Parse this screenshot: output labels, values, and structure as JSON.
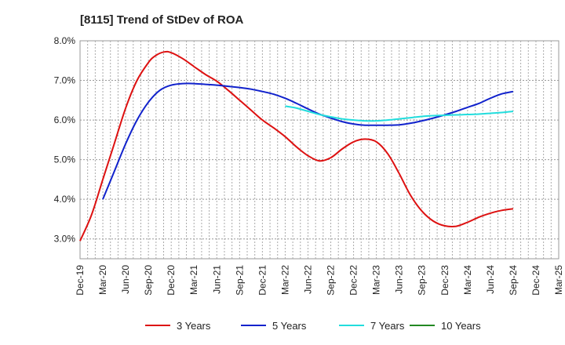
{
  "chart_data": {
    "type": "line",
    "title": "[8115]  Trend of StDev of ROA",
    "xlabel": "",
    "ylabel": "",
    "ylim": [
      2.5,
      8.0
    ],
    "yticks": [
      3.0,
      4.0,
      5.0,
      6.0,
      7.0,
      8.0
    ],
    "ytick_labels": [
      "3.0%",
      "4.0%",
      "5.0%",
      "6.0%",
      "7.0%",
      "8.0%"
    ],
    "x_categories": [
      "Dec-19",
      "Mar-20",
      "Jun-20",
      "Sep-20",
      "Dec-20",
      "Mar-21",
      "Jun-21",
      "Sep-21",
      "Dec-21",
      "Mar-22",
      "Jun-22",
      "Sep-22",
      "Dec-22",
      "Mar-23",
      "Jun-23",
      "Sep-23",
      "Dec-23",
      "Mar-24",
      "Jun-24",
      "Sep-24",
      "Dec-24",
      "Mar-25"
    ],
    "grid": true,
    "legend_position": "bottom",
    "series": [
      {
        "name": "3 Years",
        "color": "#dd1111",
        "points": [
          [
            0,
            2.95
          ],
          [
            0.5,
            3.6
          ],
          [
            1,
            4.5
          ],
          [
            1.5,
            5.4
          ],
          [
            2,
            6.3
          ],
          [
            2.5,
            7.0
          ],
          [
            3,
            7.45
          ],
          [
            3.3,
            7.62
          ],
          [
            3.7,
            7.72
          ],
          [
            4,
            7.7
          ],
          [
            4.5,
            7.55
          ],
          [
            5,
            7.35
          ],
          [
            5.5,
            7.15
          ],
          [
            6,
            6.98
          ],
          [
            6.5,
            6.75
          ],
          [
            7,
            6.5
          ],
          [
            7.5,
            6.25
          ],
          [
            8,
            6.0
          ],
          [
            8.5,
            5.8
          ],
          [
            9,
            5.58
          ],
          [
            9.5,
            5.32
          ],
          [
            10,
            5.1
          ],
          [
            10.5,
            4.97
          ],
          [
            11,
            5.05
          ],
          [
            11.5,
            5.27
          ],
          [
            12,
            5.45
          ],
          [
            12.5,
            5.52
          ],
          [
            13,
            5.45
          ],
          [
            13.5,
            5.15
          ],
          [
            14,
            4.65
          ],
          [
            14.5,
            4.1
          ],
          [
            15,
            3.7
          ],
          [
            15.5,
            3.45
          ],
          [
            16,
            3.33
          ],
          [
            16.5,
            3.32
          ],
          [
            17,
            3.42
          ],
          [
            17.5,
            3.55
          ],
          [
            18,
            3.65
          ],
          [
            18.5,
            3.72
          ],
          [
            19,
            3.76
          ]
        ]
      },
      {
        "name": "5 Years",
        "color": "#1122cc",
        "points": [
          [
            1,
            4.0
          ],
          [
            1.5,
            4.7
          ],
          [
            2,
            5.4
          ],
          [
            2.5,
            6.0
          ],
          [
            3,
            6.45
          ],
          [
            3.5,
            6.75
          ],
          [
            4,
            6.88
          ],
          [
            4.5,
            6.92
          ],
          [
            5,
            6.92
          ],
          [
            5.5,
            6.9
          ],
          [
            6,
            6.88
          ],
          [
            6.5,
            6.85
          ],
          [
            7,
            6.82
          ],
          [
            7.5,
            6.78
          ],
          [
            8,
            6.72
          ],
          [
            8.5,
            6.65
          ],
          [
            9,
            6.55
          ],
          [
            9.5,
            6.42
          ],
          [
            10,
            6.28
          ],
          [
            10.5,
            6.15
          ],
          [
            11,
            6.05
          ],
          [
            11.5,
            5.96
          ],
          [
            12,
            5.9
          ],
          [
            12.5,
            5.87
          ],
          [
            13,
            5.87
          ],
          [
            13.5,
            5.87
          ],
          [
            14,
            5.88
          ],
          [
            14.5,
            5.92
          ],
          [
            15,
            5.98
          ],
          [
            15.5,
            6.05
          ],
          [
            16,
            6.13
          ],
          [
            16.5,
            6.22
          ],
          [
            17,
            6.32
          ],
          [
            17.5,
            6.42
          ],
          [
            18,
            6.55
          ],
          [
            18.5,
            6.66
          ],
          [
            19,
            6.72
          ]
        ]
      },
      {
        "name": "7 Years",
        "color": "#22dddd",
        "points": [
          [
            9,
            6.35
          ],
          [
            9.5,
            6.3
          ],
          [
            10,
            6.22
          ],
          [
            10.5,
            6.14
          ],
          [
            11,
            6.08
          ],
          [
            11.5,
            6.03
          ],
          [
            12,
            6.0
          ],
          [
            12.5,
            5.98
          ],
          [
            13,
            5.98
          ],
          [
            13.5,
            6.0
          ],
          [
            14,
            6.03
          ],
          [
            14.5,
            6.06
          ],
          [
            15,
            6.09
          ],
          [
            15.5,
            6.11
          ],
          [
            16,
            6.12
          ],
          [
            16.5,
            6.13
          ],
          [
            17,
            6.14
          ],
          [
            17.5,
            6.15
          ],
          [
            18,
            6.17
          ],
          [
            18.5,
            6.19
          ],
          [
            19,
            6.22
          ]
        ]
      },
      {
        "name": "10 Years",
        "color": "#228822",
        "points": []
      }
    ]
  }
}
